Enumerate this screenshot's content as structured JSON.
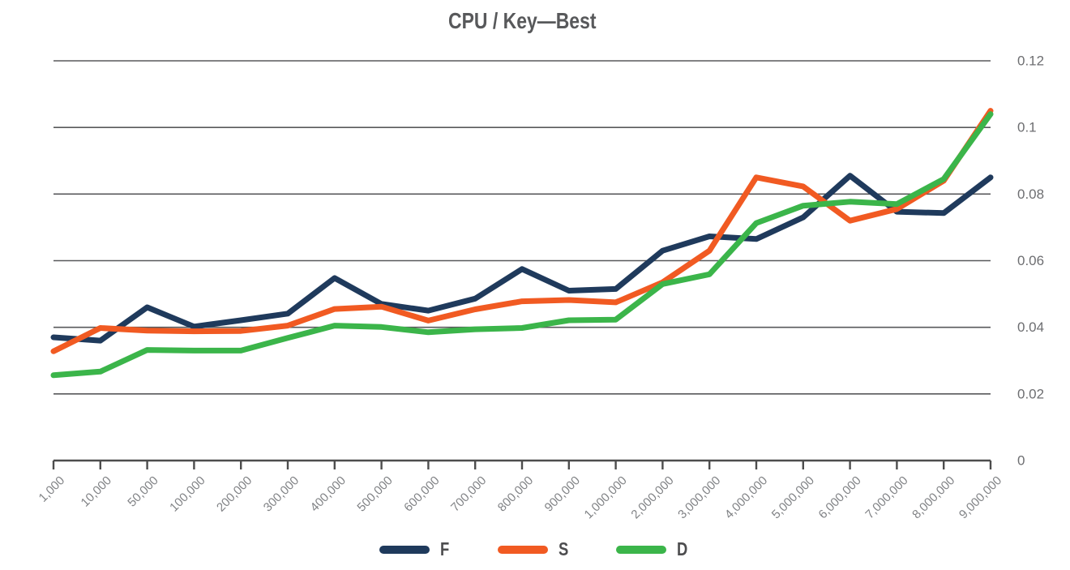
{
  "chart_data": {
    "type": "line",
    "title": "CPU / Key—Best",
    "categories": [
      "1,000",
      "10,000",
      "50,000",
      "100,000",
      "200,000",
      "300,000",
      "400,000",
      "500,000",
      "600,000",
      "700,000",
      "800,000",
      "900,000",
      "1,000,000",
      "2,000,000",
      "3,000,000",
      "4,000,000",
      "5,000,000",
      "6,000,000",
      "7,000,000",
      "8,000,000",
      "9,000,000"
    ],
    "series": [
      {
        "name": "F",
        "color": "#1F3A5C",
        "values": [
          0.037,
          0.036,
          0.046,
          0.0402,
          0.0421,
          0.0441,
          0.0548,
          0.047,
          0.045,
          0.0486,
          0.0575,
          0.051,
          0.0515,
          0.063,
          0.0673,
          0.0665,
          0.073,
          0.0855,
          0.0747,
          0.0743,
          0.085
        ]
      },
      {
        "name": "S",
        "color": "#F15A22",
        "values": [
          0.0328,
          0.0398,
          0.039,
          0.0388,
          0.0389,
          0.0405,
          0.0455,
          0.0462,
          0.042,
          0.0454,
          0.0478,
          0.0482,
          0.0475,
          0.0535,
          0.063,
          0.085,
          0.0823,
          0.072,
          0.0755,
          0.084,
          0.105
        ]
      },
      {
        "name": "D",
        "color": "#3BB54A",
        "values": [
          0.0256,
          0.0267,
          0.0332,
          0.033,
          0.033,
          0.0368,
          0.0405,
          0.0401,
          0.0385,
          0.0394,
          0.0398,
          0.0421,
          0.0423,
          0.053,
          0.0559,
          0.0713,
          0.0765,
          0.0777,
          0.077,
          0.0845,
          0.104
        ]
      }
    ],
    "xlabel": "",
    "ylabel": "",
    "ylim": [
      0,
      0.12
    ],
    "yticks": [
      0,
      0.02,
      0.04,
      0.06,
      0.08,
      0.1,
      0.12
    ],
    "ytick_labels": [
      "0",
      "0.02",
      "0.04",
      "0.06",
      "0.08",
      "0.1",
      "0.12"
    ],
    "ytick_side": "right",
    "grid": "horizontal",
    "legend_position": "bottom",
    "colors": {
      "title": "#58595B",
      "gridline": "#58595B",
      "axis": "#4D4D4D",
      "y_tick_label": "#6D6E71",
      "x_tick_label": "#808285",
      "legend_label": "#4D4D4F",
      "background": "#FFFFFF"
    }
  }
}
